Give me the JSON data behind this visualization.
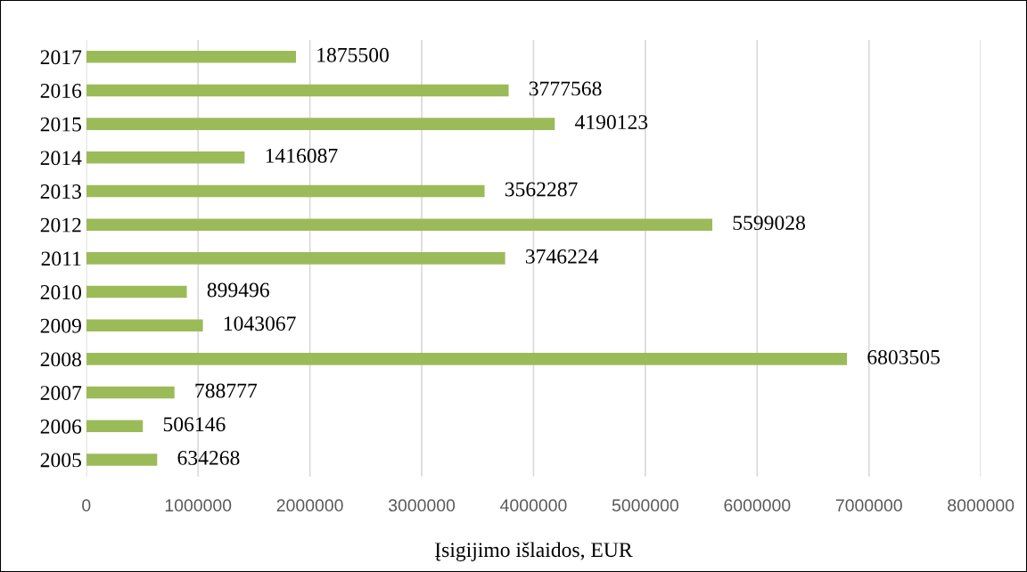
{
  "chart_data": {
    "type": "bar",
    "orientation": "horizontal",
    "xlabel": "Įsigijimo išlaidos, EUR",
    "categories": [
      "2017",
      "2016",
      "2015",
      "2014",
      "2013",
      "2012",
      "2011",
      "2010",
      "2009",
      "2008",
      "2007",
      "2006",
      "2005"
    ],
    "values": [
      1875500,
      3777568,
      4190123,
      1416087,
      3562287,
      5599028,
      3746224,
      899496,
      1043067,
      6803505,
      788777,
      506146,
      634268
    ],
    "color": "#9bbb59",
    "xlim": [
      0,
      8000000
    ],
    "xticks": [
      0,
      1000000,
      2000000,
      3000000,
      4000000,
      5000000,
      6000000,
      7000000,
      8000000
    ],
    "grid": "x",
    "data_labels": true
  }
}
